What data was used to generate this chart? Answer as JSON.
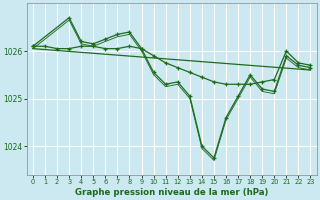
{
  "bg_color": "#cce8f0",
  "grid_color": "#b0d8e8",
  "line_color": "#1e6b1e",
  "title": "Graphe pression niveau de la mer (hPa)",
  "xlim": [
    -0.5,
    23.5
  ],
  "ylim": [
    1023.4,
    1027.0
  ],
  "yticks": [
    1024,
    1025,
    1026
  ],
  "xticks": [
    0,
    1,
    2,
    3,
    4,
    5,
    6,
    7,
    8,
    9,
    10,
    11,
    12,
    13,
    14,
    15,
    16,
    17,
    18,
    19,
    20,
    21,
    22,
    23
  ],
  "series1_x": [
    0,
    1,
    2,
    3,
    4,
    5,
    6,
    7,
    8,
    9,
    10,
    11,
    12,
    13,
    14,
    15,
    16,
    17,
    18,
    19,
    20,
    21,
    22,
    23
  ],
  "series1_y": [
    1026.1,
    1026.1,
    1026.05,
    1026.05,
    1026.1,
    1026.1,
    1026.05,
    1026.05,
    1026.1,
    1026.05,
    1025.9,
    1025.75,
    1025.65,
    1025.55,
    1025.45,
    1025.35,
    1025.3,
    1025.3,
    1025.3,
    1025.35,
    1025.4,
    1026.0,
    1025.75,
    1025.7
  ],
  "series2_x": [
    0,
    23
  ],
  "series2_y": [
    1026.05,
    1025.6
  ],
  "series3_x": [
    0,
    3,
    4,
    5,
    6,
    7,
    8,
    9,
    10,
    11,
    12,
    13,
    14,
    15,
    16,
    17,
    18,
    19,
    20,
    21,
    22,
    23
  ],
  "series3_y": [
    1026.1,
    1026.7,
    1026.2,
    1026.15,
    1026.25,
    1026.35,
    1026.4,
    1026.05,
    1025.55,
    1025.3,
    1025.35,
    1025.05,
    1024.0,
    1023.75,
    1024.6,
    1025.05,
    1025.5,
    1025.2,
    1025.15,
    1025.9,
    1025.7,
    1025.65
  ],
  "series4_x": [
    0,
    3,
    4,
    5,
    6,
    7,
    8,
    9,
    10,
    11,
    12,
    13,
    14,
    15,
    16,
    17,
    18,
    19,
    20,
    21,
    22,
    23
  ],
  "series4_y": [
    1026.05,
    1026.65,
    1026.15,
    1026.1,
    1026.2,
    1026.3,
    1026.35,
    1026.0,
    1025.5,
    1025.25,
    1025.3,
    1025.0,
    1023.95,
    1023.7,
    1024.55,
    1025.0,
    1025.45,
    1025.15,
    1025.1,
    1025.85,
    1025.65,
    1025.6
  ]
}
